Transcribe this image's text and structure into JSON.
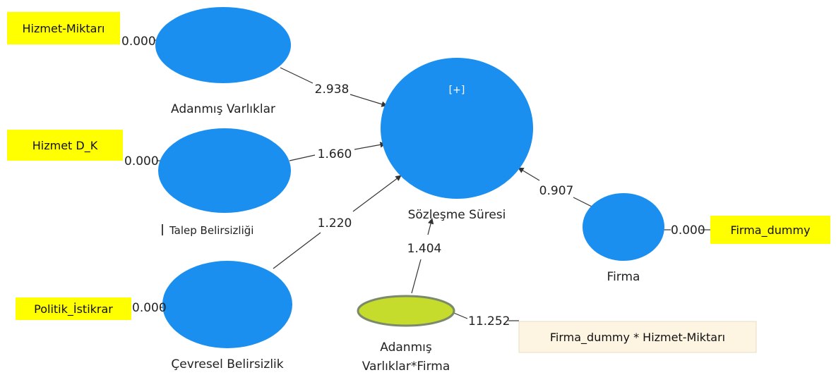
{
  "colors": {
    "construct_fill": "#1a8ff0",
    "interaction_fill": "#c5dc2c",
    "interaction_stroke": "#7a8a6a",
    "indicator_fill": "#ffff00",
    "interaction_indicator_fill": "#fdf5e2",
    "line": "#333333"
  },
  "constructs": {
    "adanmis": {
      "label": "Adanmış Varlıklar"
    },
    "talep": {
      "label": "Talep Belirsizliği"
    },
    "cevresel": {
      "label": "Çevresel Belirsizlik"
    },
    "sozlesme": {
      "label": "Sözleşme Süresi",
      "expand_label": "[+]"
    },
    "firma": {
      "label": "Firma"
    },
    "interaction": {
      "label_line1": "Adanmış",
      "label_line2": "Varlıklar*Firma"
    }
  },
  "indicators": {
    "hizmet_miktari": "Hizmet-Miktarı",
    "hizmet_dk": "Hizmet D_K",
    "politik": "Politik_İstikrar",
    "firma_dummy": "Firma_dummy",
    "interaction_term": "Firma_dummy * Hizmet-Miktarı"
  },
  "loadings": {
    "hizmet_miktari": "0.000",
    "hizmet_dk": "0.000",
    "politik": "0.000",
    "firma_dummy": "0.000",
    "interaction_term": "11.252"
  },
  "paths": {
    "adanmis_to_sozlesme": "2.938",
    "talep_to_sozlesme": "1.660",
    "cevresel_to_sozlesme": "1.220",
    "interaction_to_sozlesme": "1.404",
    "firma_to_sozlesme": "0.907"
  }
}
